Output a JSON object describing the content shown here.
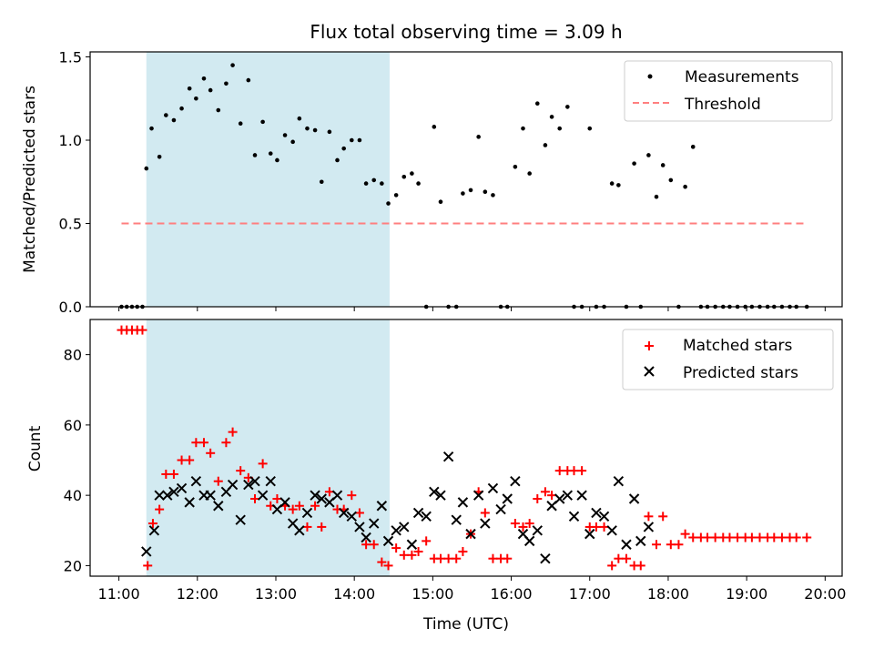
{
  "chart_data": [
    {
      "type": "scatter",
      "title": "Flux total observing time = 3.09 h",
      "ylabel": "Matched/Predicted stars",
      "xlabel": "",
      "xlim": [
        "10:38",
        "20:13"
      ],
      "ylim": [
        0,
        1.53
      ],
      "y_ticks": [
        "0.0",
        "0.5",
        "1.0",
        "1.5"
      ],
      "shaded_region": {
        "start": "11:21",
        "end": "14:27",
        "color": "#add8e6"
      },
      "legend_position": "top-right",
      "series": [
        {
          "name": "Measurements",
          "marker": "dot",
          "color": "#000000",
          "x": [
            "11:02",
            "11:06",
            "11:10",
            "11:14",
            "11:18",
            "11:21",
            "11:25",
            "11:31",
            "11:36",
            "11:42",
            "11:48",
            "11:54",
            "11:59",
            "12:05",
            "12:10",
            "12:16",
            "12:22",
            "12:27",
            "12:33",
            "12:39",
            "12:44",
            "12:50",
            "12:56",
            "13:01",
            "13:07",
            "13:13",
            "13:18",
            "13:24",
            "13:30",
            "13:35",
            "13:41",
            "13:47",
            "13:52",
            "13:58",
            "14:04",
            "14:09",
            "14:15",
            "14:21",
            "14:26",
            "14:32",
            "14:38",
            "14:44",
            "14:49",
            "14:55",
            "15:01",
            "15:06",
            "15:12",
            "15:18",
            "15:23",
            "15:29",
            "15:35",
            "15:40",
            "15:46",
            "15:52",
            "15:57",
            "16:03",
            "16:09",
            "16:14",
            "16:20",
            "16:26",
            "16:31",
            "16:37",
            "16:43",
            "16:48",
            "16:54",
            "17:00",
            "17:05",
            "17:11",
            "17:17",
            "17:22",
            "17:28",
            "17:34",
            "17:39",
            "17:45",
            "17:51",
            "17:56",
            "18:02",
            "18:08",
            "18:13",
            "18:19",
            "18:25",
            "18:30",
            "18:36",
            "18:42",
            "18:47",
            "18:53",
            "18:59",
            "19:04",
            "19:10",
            "19:16",
            "19:21",
            "19:27",
            "19:33",
            "19:38",
            "19:46"
          ],
          "y": [
            0,
            0,
            0,
            0,
            0,
            0.83,
            1.07,
            0.9,
            1.15,
            1.12,
            1.19,
            1.31,
            1.25,
            1.37,
            1.3,
            1.18,
            1.34,
            1.45,
            1.1,
            1.36,
            0.91,
            1.11,
            0.92,
            0.88,
            1.03,
            0.99,
            1.13,
            1.07,
            1.06,
            0.75,
            1.05,
            0.88,
            0.95,
            1,
            1,
            0.74,
            0.76,
            0.74,
            0.62,
            0.67,
            0.78,
            0.8,
            0.74,
            0,
            1.08,
            0.63,
            0,
            0,
            0.68,
            0.7,
            1.02,
            0.69,
            0.67,
            0,
            0,
            0.84,
            1.07,
            0.8,
            1.22,
            0.97,
            1.14,
            1.07,
            1.2,
            0,
            0,
            1.07,
            0,
            0,
            0.74,
            0.73,
            0,
            0.86,
            0,
            0.91,
            0.66,
            0.85,
            0.76,
            0,
            0.72,
            0.96,
            0,
            0,
            0,
            0,
            0,
            0,
            0,
            0,
            0,
            0,
            0,
            0,
            0,
            0,
            0
          ]
        },
        {
          "name": "Threshold",
          "marker": "dashed-line",
          "color": "#ff7f7f",
          "x": [
            "11:02",
            "19:46"
          ],
          "y": [
            0.5,
            0.5
          ]
        }
      ]
    },
    {
      "type": "scatter",
      "title": "",
      "ylabel": "Count",
      "xlabel": "Time (UTC)",
      "xlim": [
        "10:38",
        "20:13"
      ],
      "ylim": [
        17,
        90
      ],
      "y_ticks": [
        "20",
        "40",
        "60",
        "80"
      ],
      "x_ticks": [
        "11:00",
        "12:00",
        "13:00",
        "14:00",
        "15:00",
        "16:00",
        "17:00",
        "18:00",
        "19:00",
        "20:00"
      ],
      "shaded_region": {
        "start": "11:21",
        "end": "14:27",
        "color": "#add8e6"
      },
      "legend_position": "top-right",
      "series": [
        {
          "name": "Matched stars",
          "marker": "plus",
          "color": "#ff0000",
          "x": [
            "11:02",
            "11:06",
            "11:10",
            "11:14",
            "11:18",
            "11:22",
            "11:26",
            "11:31",
            "11:36",
            "11:42",
            "11:48",
            "11:54",
            "11:59",
            "12:05",
            "12:10",
            "12:16",
            "12:22",
            "12:27",
            "12:33",
            "12:39",
            "12:44",
            "12:50",
            "12:56",
            "13:01",
            "13:07",
            "13:13",
            "13:18",
            "13:24",
            "13:30",
            "13:35",
            "13:41",
            "13:47",
            "13:52",
            "13:58",
            "14:04",
            "14:09",
            "14:15",
            "14:21",
            "14:26",
            "14:32",
            "14:38",
            "14:44",
            "14:49",
            "14:55",
            "15:01",
            "15:06",
            "15:12",
            "15:18",
            "15:23",
            "15:29",
            "15:35",
            "15:40",
            "15:46",
            "15:52",
            "15:57",
            "16:03",
            "16:09",
            "16:14",
            "16:20",
            "16:26",
            "16:31",
            "16:37",
            "16:43",
            "16:48",
            "16:54",
            "17:00",
            "17:05",
            "17:11",
            "17:17",
            "17:22",
            "17:28",
            "17:34",
            "17:39",
            "17:45",
            "17:51",
            "17:56",
            "18:02",
            "18:08",
            "18:13",
            "18:19",
            "18:25",
            "18:30",
            "18:36",
            "18:42",
            "18:47",
            "18:53",
            "18:59",
            "19:04",
            "19:10",
            "19:16",
            "19:21",
            "19:27",
            "19:33",
            "19:38",
            "19:46"
          ],
          "y": [
            87,
            87,
            87,
            87,
            87,
            20,
            32,
            36,
            46,
            46,
            50,
            50,
            55,
            55,
            52,
            44,
            55,
            58,
            47,
            45,
            39,
            49,
            37,
            39,
            37,
            36,
            37,
            31,
            37,
            31,
            41,
            36,
            36,
            40,
            35,
            26,
            26,
            21,
            20,
            25,
            23,
            23,
            24,
            27,
            22,
            22,
            22,
            22,
            24,
            29,
            41,
            35,
            22,
            22,
            22,
            32,
            31,
            32,
            39,
            41,
            40,
            47,
            47,
            47,
            47,
            31,
            31,
            31,
            20,
            22,
            22,
            20,
            20,
            34,
            26,
            34,
            26,
            26,
            29,
            28,
            28,
            28,
            28,
            28,
            28,
            28,
            28,
            28,
            28,
            28,
            28,
            28,
            28,
            28,
            28
          ]
        },
        {
          "name": "Predicted stars",
          "marker": "x",
          "color": "#000000",
          "x": [
            "11:21",
            "11:27",
            "11:31",
            "11:37",
            "11:42",
            "11:48",
            "11:54",
            "11:59",
            "12:05",
            "12:10",
            "12:16",
            "12:22",
            "12:27",
            "12:33",
            "12:39",
            "12:44",
            "12:50",
            "12:56",
            "13:01",
            "13:07",
            "13:13",
            "13:18",
            "13:24",
            "13:30",
            "13:35",
            "13:41",
            "13:47",
            "13:52",
            "13:58",
            "14:04",
            "14:09",
            "14:15",
            "14:21",
            "14:26",
            "14:32",
            "14:38",
            "14:44",
            "14:49",
            "14:55",
            "15:01",
            "15:06",
            "15:12",
            "15:18",
            "15:23",
            "15:29",
            "15:35",
            "15:40",
            "15:46",
            "15:52",
            "15:57",
            "16:03",
            "16:09",
            "16:14",
            "16:20",
            "16:26",
            "16:31",
            "16:37",
            "16:43",
            "16:48",
            "16:54",
            "17:00",
            "17:05",
            "17:11",
            "17:17",
            "17:22",
            "17:28",
            "17:34",
            "17:39",
            "17:45"
          ],
          "y": [
            24,
            30,
            40,
            40,
            41,
            42,
            38,
            44,
            40,
            40,
            37,
            41,
            43,
            33,
            43,
            44,
            40,
            44,
            36,
            38,
            32,
            30,
            35,
            40,
            39,
            38,
            40,
            35,
            34,
            31,
            28,
            32,
            37,
            27,
            30,
            31,
            26,
            35,
            34,
            41,
            40,
            51,
            33,
            38,
            29,
            40,
            32,
            42,
            36,
            39,
            44,
            29,
            27,
            30,
            22,
            37,
            39,
            40,
            34,
            40,
            29,
            35,
            34,
            30,
            44,
            26,
            39,
            27,
            31
          ]
        }
      ]
    }
  ]
}
